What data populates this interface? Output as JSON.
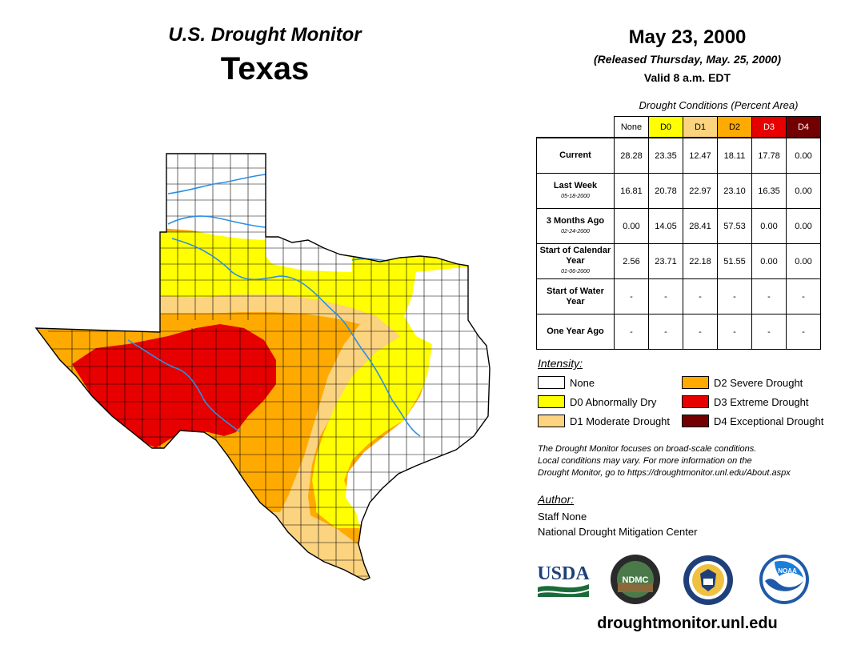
{
  "header": {
    "title": "U.S. Drought Monitor",
    "state": "Texas",
    "date": "May 23, 2000",
    "released": "(Released Thursday, May. 25, 2000)",
    "valid": "Valid 8 a.m. EDT"
  },
  "conditions": {
    "title": "Drought Conditions (Percent Area)",
    "columns": [
      "None",
      "D0",
      "D1",
      "D2",
      "D3",
      "D4"
    ],
    "column_colors": [
      "#ffffff",
      "#ffff00",
      "#fcd37f",
      "#ffaa00",
      "#e60000",
      "#730000"
    ],
    "rows": [
      {
        "label": "Current",
        "sub": "",
        "values": [
          "28.28",
          "23.35",
          "12.47",
          "18.11",
          "17.78",
          "0.00"
        ]
      },
      {
        "label": "Last Week",
        "sub": "05-18-2000",
        "values": [
          "16.81",
          "20.78",
          "22.97",
          "23.10",
          "16.35",
          "0.00"
        ]
      },
      {
        "label": "3 Months Ago",
        "sub": "02-24-2000",
        "values": [
          "0.00",
          "14.05",
          "28.41",
          "57.53",
          "0.00",
          "0.00"
        ]
      },
      {
        "label": "Start of Calendar Year",
        "sub": "01-06-2000",
        "values": [
          "2.56",
          "23.71",
          "22.18",
          "51.55",
          "0.00",
          "0.00"
        ]
      },
      {
        "label": "Start of Water Year",
        "sub": "",
        "values": [
          "-",
          "-",
          "-",
          "-",
          "-",
          "-"
        ]
      },
      {
        "label": "One Year Ago",
        "sub": "",
        "values": [
          "-",
          "-",
          "-",
          "-",
          "-",
          "-"
        ]
      }
    ]
  },
  "legend": {
    "title": "Intensity:",
    "items": [
      {
        "label": "None",
        "color": "#ffffff"
      },
      {
        "label": "D0 Abnormally Dry",
        "color": "#ffff00"
      },
      {
        "label": "D1 Moderate Drought",
        "color": "#fcd37f"
      },
      {
        "label": "D2 Severe Drought",
        "color": "#ffaa00"
      },
      {
        "label": "D3 Extreme Drought",
        "color": "#e60000"
      },
      {
        "label": "D4 Exceptional Drought",
        "color": "#730000"
      }
    ]
  },
  "note": {
    "line1": "The Drought Monitor focuses on broad-scale conditions.",
    "line2": "Local conditions may vary. For more information on the",
    "line3": "Drought Monitor, go to https://droughtmonitor.unl.edu/About.aspx"
  },
  "author": {
    "title": "Author:",
    "name": "Staff None",
    "org": "National Drought Mitigation Center"
  },
  "logos": {
    "usda": "USDA",
    "ndmc": "NDMC",
    "noaa": "NOAA"
  },
  "footer": {
    "url": "droughtmonitor.unl.edu"
  }
}
